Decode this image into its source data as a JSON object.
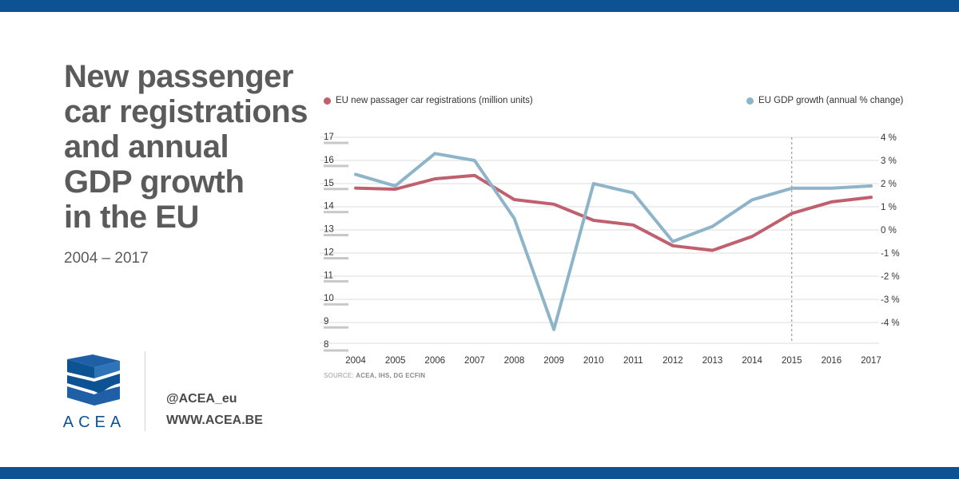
{
  "header": {
    "title": "New passenger\ncar registrations\nand annual\nGDP growth\nin the EU",
    "subtitle": "2004 – 2017"
  },
  "brand": {
    "logo_text": "ACEA",
    "handle": "@ACEA_eu",
    "website": "WWW.ACEA.BE",
    "color": "#0d5394"
  },
  "chart_data": {
    "type": "line",
    "x": [
      "2004",
      "2005",
      "2006",
      "2007",
      "2008",
      "2009",
      "2010",
      "2011",
      "2012",
      "2013",
      "2014",
      "2015",
      "2016",
      "2017"
    ],
    "series": [
      {
        "name": "EU new passager car registrations (million units)",
        "color": "#c0606e",
        "axis": "left",
        "values": [
          14.8,
          14.75,
          15.2,
          15.35,
          14.3,
          14.1,
          13.4,
          13.2,
          12.3,
          12.1,
          12.7,
          13.7,
          14.2,
          14.4
        ]
      },
      {
        "name": "EU GDP growth (annual % change)",
        "color": "#8db4c8",
        "axis": "right",
        "values": [
          2.4,
          1.9,
          3.3,
          3.0,
          0.5,
          -4.3,
          2.0,
          1.6,
          -0.5,
          0.15,
          1.3,
          1.8,
          1.8,
          1.9
        ]
      }
    ],
    "left_axis": {
      "ticks": [
        "17",
        "16",
        "15",
        "14",
        "13",
        "12",
        "11",
        "10",
        "9",
        "8"
      ],
      "ylim": [
        8,
        17
      ]
    },
    "right_axis": {
      "ticks": [
        "4 %",
        "3 %",
        "2 %",
        "1 %",
        "0 %",
        "-1 %",
        "-2 %",
        "-3 %",
        "-4 %"
      ],
      "ylim": [
        -4,
        4
      ]
    },
    "marker": {
      "x": "2015",
      "style": "dashed"
    },
    "source_label": "SOURCE: ",
    "source_value": "ACEA, IHS, DG ECFIN",
    "grid": true
  }
}
